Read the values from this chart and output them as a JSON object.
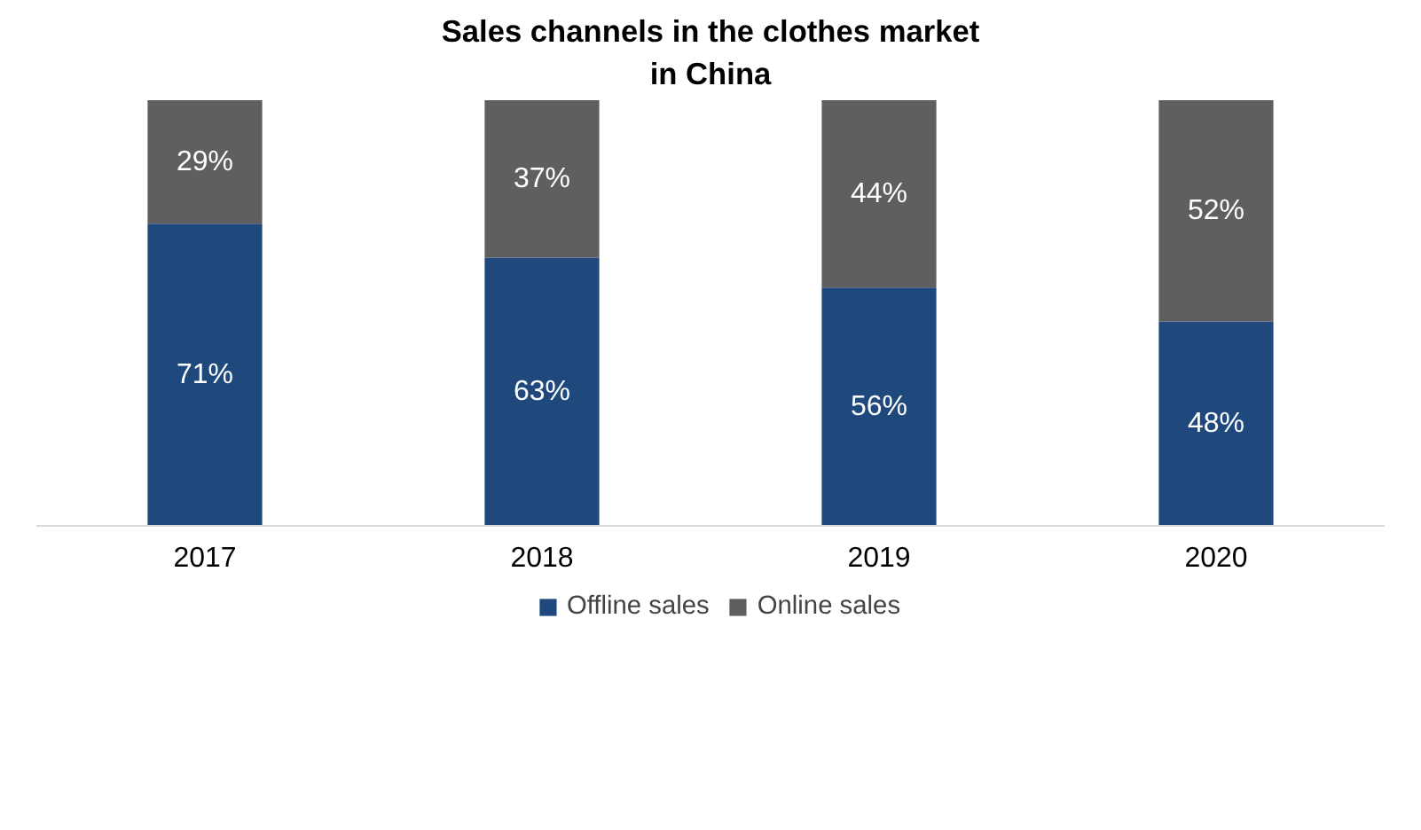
{
  "chart_data": {
    "type": "bar",
    "stacked": true,
    "title": "Sales channels in the clothes market in China",
    "categories": [
      "2017",
      "2018",
      "2019",
      "2020"
    ],
    "series": [
      {
        "name": "Offline sales",
        "color": "#1f497d",
        "values": [
          71,
          63,
          56,
          48
        ],
        "value_labels": [
          "71%",
          "63%",
          "56%",
          "48%"
        ]
      },
      {
        "name": "Online sales",
        "color": "#5f5f5f",
        "values": [
          29,
          37,
          44,
          52
        ],
        "value_labels": [
          "29%",
          "37%",
          "44%",
          "52%"
        ]
      }
    ],
    "legend": "bottom"
  }
}
